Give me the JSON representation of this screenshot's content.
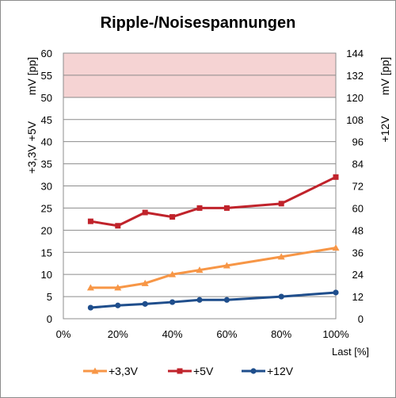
{
  "chart_data": {
    "type": "line",
    "title": "Ripple-/Noisespannungen",
    "xlabel": "Last [%]",
    "ylabel_left_1": "+3,3V +5V",
    "ylabel_left_2": "mV [pp]",
    "ylabel_right_1": "+12V",
    "ylabel_right_2": "mV [pp]",
    "x_ticks": [
      "0%",
      "20%",
      "40%",
      "60%",
      "80%",
      "100%"
    ],
    "xlim": [
      0,
      100
    ],
    "y_left_ticks": [
      "0",
      "5",
      "10",
      "15",
      "20",
      "25",
      "30",
      "35",
      "40",
      "45",
      "50",
      "55",
      "60"
    ],
    "ylim_left": [
      0,
      60
    ],
    "y_right_ticks": [
      "0",
      "12",
      "24",
      "36",
      "48",
      "60",
      "72",
      "84",
      "96",
      "108",
      "120",
      "132",
      "144"
    ],
    "ylim_right": [
      0,
      144
    ],
    "limit_band": {
      "from": 50,
      "to": 60,
      "axis": "left",
      "color": "#f5d3d3"
    },
    "grid": true,
    "legend_position": "bottom",
    "series": [
      {
        "name": "+3,3V",
        "axis": "left",
        "color": "#f79646",
        "marker": "triangle",
        "x": [
          10,
          20,
          30,
          40,
          50,
          60,
          80,
          100
        ],
        "values": [
          7,
          7,
          8,
          10,
          11,
          12,
          14,
          16
        ]
      },
      {
        "name": "+5V",
        "axis": "left",
        "color": "#c0232b",
        "marker": "square",
        "x": [
          10,
          20,
          30,
          40,
          50,
          60,
          80,
          100
        ],
        "values": [
          22,
          21,
          24,
          23,
          25,
          25,
          26,
          32
        ]
      },
      {
        "name": "+12V",
        "axis": "right",
        "color": "#1f4e8c",
        "marker": "circle",
        "x": [
          10,
          20,
          30,
          40,
          50,
          60,
          80,
          100
        ],
        "values": [
          6,
          7.2,
          8,
          9,
          10.2,
          10.2,
          12,
          14.2
        ]
      }
    ]
  }
}
